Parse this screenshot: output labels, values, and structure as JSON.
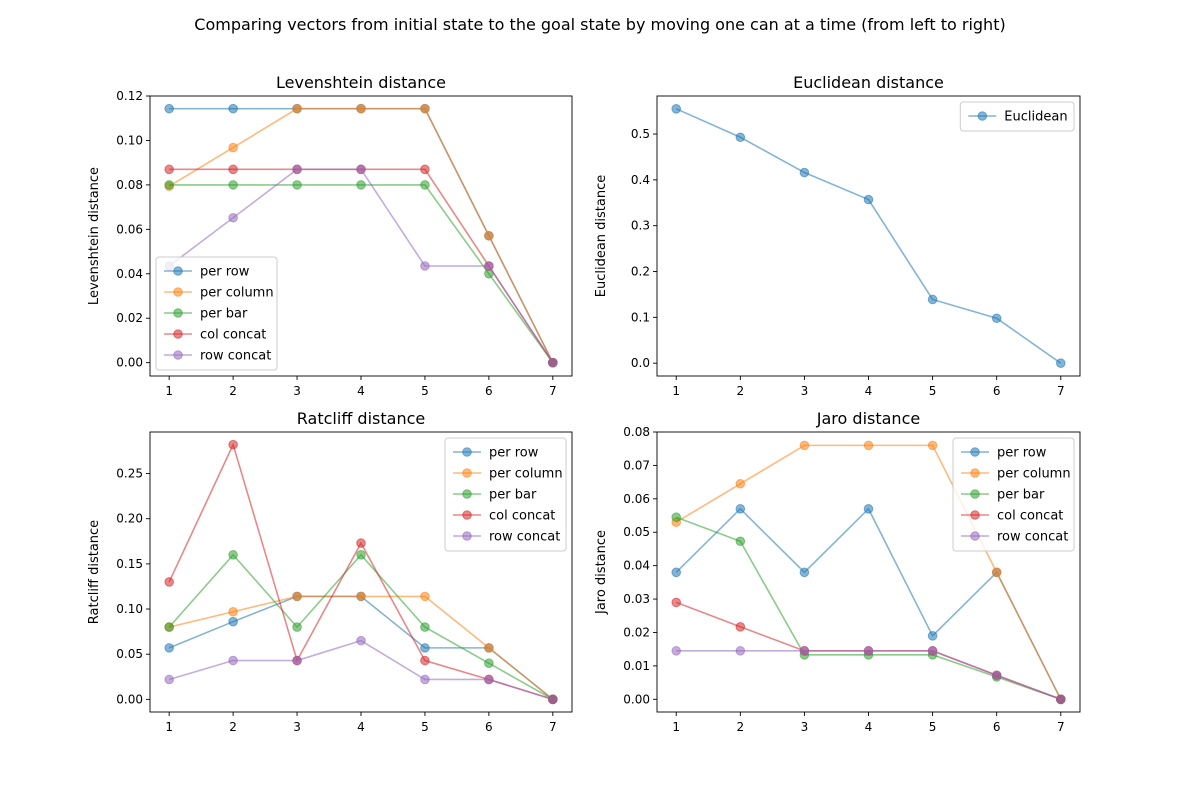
{
  "figure": {
    "suptitle": "Comparing vectors from initial state to the goal state by moving one can at a time (from left to right)"
  },
  "colors": {
    "per_row": "#1f77b4",
    "per_column": "#ff7f0e",
    "per_bar": "#2ca02c",
    "col_concat": "#d62728",
    "row_concat": "#9467bd"
  },
  "chart_data": [
    {
      "type": "line",
      "title": "Levenshtein distance",
      "xlabel": "",
      "ylabel": "Levenshtein distance",
      "x": [
        1,
        2,
        3,
        4,
        5,
        6,
        7
      ],
      "xlim": [
        0.7,
        7.3
      ],
      "ylim": [
        -0.006,
        0.12
      ],
      "yticks": [
        0.0,
        0.02,
        0.04,
        0.06,
        0.08,
        0.1,
        0.12
      ],
      "ytick_labels": [
        "0.00",
        "0.02",
        "0.04",
        "0.06",
        "0.08",
        "0.10",
        "0.12"
      ],
      "legend": "lower-left",
      "grid": false,
      "series": [
        {
          "name": "per row",
          "color": "per_row",
          "values": [
            0.1143,
            0.1143,
            0.1143,
            0.1143,
            0.1143,
            0.0571,
            0.0
          ]
        },
        {
          "name": "per column",
          "color": "per_column",
          "values": [
            0.0794,
            0.0968,
            0.1143,
            0.1143,
            0.1143,
            0.0571,
            0.0
          ]
        },
        {
          "name": "per bar",
          "color": "per_bar",
          "values": [
            0.08,
            0.08,
            0.08,
            0.08,
            0.08,
            0.04,
            0.0
          ]
        },
        {
          "name": "col concat",
          "color": "col_concat",
          "values": [
            0.087,
            0.087,
            0.087,
            0.087,
            0.087,
            0.0435,
            0.0
          ]
        },
        {
          "name": "row concat",
          "color": "row_concat",
          "values": [
            0.0435,
            0.0652,
            0.087,
            0.087,
            0.0435,
            0.0435,
            0.0
          ]
        }
      ]
    },
    {
      "type": "line",
      "title": "Euclidean distance",
      "xlabel": "",
      "ylabel": "Euclidean distance",
      "x": [
        1,
        2,
        3,
        4,
        5,
        6,
        7
      ],
      "xlim": [
        0.7,
        7.3
      ],
      "ylim": [
        -0.028,
        0.583
      ],
      "yticks": [
        0.0,
        0.1,
        0.2,
        0.3,
        0.4,
        0.5
      ],
      "ytick_labels": [
        "0.0",
        "0.1",
        "0.2",
        "0.3",
        "0.4",
        "0.5"
      ],
      "legend": "top-right",
      "grid": false,
      "series": [
        {
          "name": "Euclidean",
          "color": "per_row",
          "values": [
            0.555,
            0.493,
            0.416,
            0.357,
            0.139,
            0.098,
            0.0
          ]
        }
      ]
    },
    {
      "type": "line",
      "title": "Ratcliff distance",
      "xlabel": "",
      "ylabel": "Ratcliff distance",
      "x": [
        1,
        2,
        3,
        4,
        5,
        6,
        7
      ],
      "xlim": [
        0.7,
        7.3
      ],
      "ylim": [
        -0.014,
        0.296
      ],
      "yticks": [
        0.0,
        0.05,
        0.1,
        0.15,
        0.2,
        0.25
      ],
      "ytick_labels": [
        "0.00",
        "0.05",
        "0.10",
        "0.15",
        "0.20",
        "0.25"
      ],
      "legend": "top-right",
      "grid": false,
      "series": [
        {
          "name": "per row",
          "color": "per_row",
          "values": [
            0.057,
            0.086,
            0.114,
            0.114,
            0.057,
            0.057,
            0.0
          ]
        },
        {
          "name": "per column",
          "color": "per_column",
          "values": [
            0.08,
            0.097,
            0.114,
            0.114,
            0.114,
            0.057,
            0.0
          ]
        },
        {
          "name": "per bar",
          "color": "per_bar",
          "values": [
            0.08,
            0.16,
            0.08,
            0.16,
            0.08,
            0.04,
            0.0
          ]
        },
        {
          "name": "col concat",
          "color": "col_concat",
          "values": [
            0.13,
            0.282,
            0.043,
            0.173,
            0.043,
            0.022,
            0.0
          ]
        },
        {
          "name": "row concat",
          "color": "row_concat",
          "values": [
            0.022,
            0.043,
            0.043,
            0.065,
            0.022,
            0.022,
            0.0
          ]
        }
      ]
    },
    {
      "type": "line",
      "title": "Jaro distance",
      "xlabel": "",
      "ylabel": "Jaro distance",
      "x": [
        1,
        2,
        3,
        4,
        5,
        6,
        7
      ],
      "xlim": [
        0.7,
        7.3
      ],
      "ylim": [
        -0.0038,
        0.08
      ],
      "yticks": [
        0.0,
        0.01,
        0.02,
        0.03,
        0.04,
        0.05,
        0.06,
        0.07,
        0.08
      ],
      "ytick_labels": [
        "0.00",
        "0.01",
        "0.02",
        "0.03",
        "0.04",
        "0.05",
        "0.06",
        "0.07",
        "0.08"
      ],
      "legend": "top-right",
      "grid": false,
      "series": [
        {
          "name": "per row",
          "color": "per_row",
          "values": [
            0.038,
            0.057,
            0.038,
            0.057,
            0.019,
            0.038,
            0.0
          ]
        },
        {
          "name": "per column",
          "color": "per_column",
          "values": [
            0.053,
            0.0645,
            0.076,
            0.076,
            0.076,
            0.038,
            0.0
          ]
        },
        {
          "name": "per bar",
          "color": "per_bar",
          "values": [
            0.0545,
            0.0473,
            0.0133,
            0.0133,
            0.0133,
            0.0067,
            0.0
          ]
        },
        {
          "name": "col concat",
          "color": "col_concat",
          "values": [
            0.029,
            0.0217,
            0.0145,
            0.0145,
            0.0145,
            0.0072,
            0.0
          ]
        },
        {
          "name": "row concat",
          "color": "row_concat",
          "values": [
            0.0145,
            0.0145,
            0.0145,
            0.0145,
            0.0145,
            0.0072,
            0.0
          ]
        }
      ]
    }
  ]
}
